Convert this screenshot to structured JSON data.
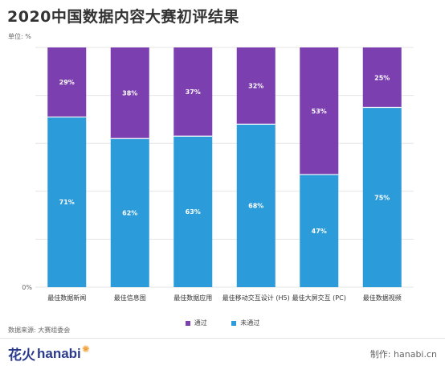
{
  "title": "2020中国数据内容大赛初评结果",
  "unit_label": "单位: %",
  "source_label": "数据来源: 大赛组委会",
  "credit": "制作: hanabi.cn",
  "logo": {
    "cn": "花火",
    "en": "hanabi"
  },
  "colors": {
    "passed": "#7b3fb0",
    "failed": "#2b9bd9",
    "grid": "#e5e5e5",
    "axis": "#999999",
    "logo": "#2a3a8c"
  },
  "chart_data": {
    "type": "bar",
    "stacked": true,
    "percent_stacked": true,
    "categories": [
      "最佳数据新闻",
      "最佳信息图",
      "最佳数据应用",
      "最佳移动交互设计 (H5)",
      "最佳大屏交互 (PC)",
      "最佳数据视频"
    ],
    "series": [
      {
        "name": "未通过",
        "values": [
          71,
          62,
          63,
          68,
          47,
          75
        ]
      },
      {
        "name": "通过",
        "values": [
          29,
          38,
          37,
          32,
          53,
          25
        ]
      }
    ],
    "value_suffix": "%",
    "ylim": [
      0,
      100
    ],
    "y_tick_labels": [
      "0%"
    ],
    "grid": true,
    "legend": "bottom-center",
    "legend_order": [
      "通过",
      "未通过"
    ]
  }
}
